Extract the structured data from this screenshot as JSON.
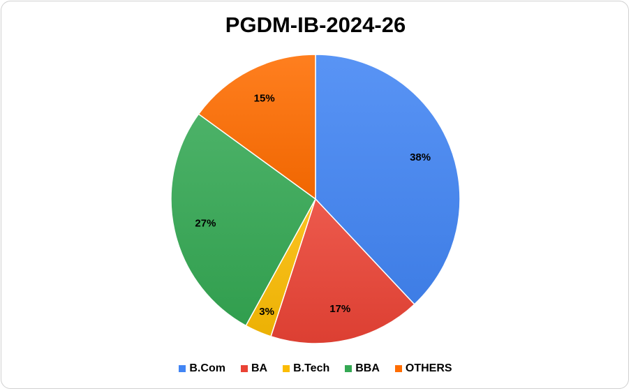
{
  "chart_data": {
    "type": "pie",
    "title": "PGDM-IB-2024-26",
    "categories": [
      "B.Com",
      "BA",
      "B.Tech",
      "BBA",
      "OTHERS"
    ],
    "values": [
      38,
      17,
      3,
      27,
      15
    ],
    "data_labels": [
      "38%",
      "17%",
      "3%",
      "27%",
      "15%"
    ],
    "colors": [
      "#4285f4",
      "#ea4335",
      "#fbbc04",
      "#34a853",
      "#ff6d01"
    ],
    "legend_position": "bottom"
  }
}
